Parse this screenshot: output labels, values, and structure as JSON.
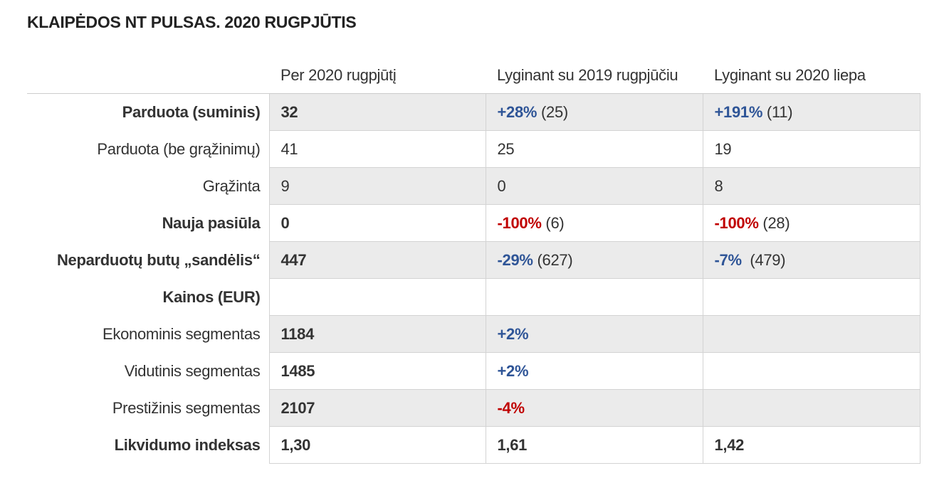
{
  "title": "KLAIPĖDOS NT PULSAS. 2020 RUGPJŪTIS",
  "colors": {
    "positive": "#2f5597",
    "negative": "#c00000",
    "shade": "#ebebeb"
  },
  "table": {
    "headers": [
      "",
      "Per 2020 rugpjūtį",
      "Lyginant su 2019 rugpjūčiu",
      "Lyginant su 2020 liepa"
    ],
    "rows": [
      {
        "label": "Parduota (suminis)",
        "bold": true,
        "shaded": true,
        "cells": [
          {
            "value": "32"
          },
          {
            "value": "+28%",
            "tone": "pos",
            "extra": " (25)"
          },
          {
            "value": "+191%",
            "tone": "pos",
            "extra": " (11)"
          }
        ]
      },
      {
        "label": "Parduota (be grąžinimų)",
        "bold": false,
        "shaded": false,
        "cells": [
          {
            "value": "41"
          },
          {
            "value": "25"
          },
          {
            "value": "19"
          }
        ]
      },
      {
        "label": "Grąžinta",
        "bold": false,
        "shaded": true,
        "cells": [
          {
            "value": "9"
          },
          {
            "value": "0"
          },
          {
            "value": "8"
          }
        ]
      },
      {
        "label": "Nauja pasiūla",
        "bold": true,
        "shaded": false,
        "cells": [
          {
            "value": "0"
          },
          {
            "value": "-100%",
            "tone": "neg",
            "extra": " (6)"
          },
          {
            "value": "-100%",
            "tone": "neg",
            "extra": " (28)"
          }
        ]
      },
      {
        "label": "Neparduotų butų „sandėlis“",
        "bold": true,
        "shaded": true,
        "cells": [
          {
            "value": "447"
          },
          {
            "value": "-29%",
            "tone": "pos",
            "extra": " (627)"
          },
          {
            "value": "-7%",
            "tone": "pos",
            "extra": "  (479)"
          }
        ]
      },
      {
        "label": "Kainos (EUR)",
        "bold": true,
        "shaded": false,
        "cells": [
          {
            "value": ""
          },
          {
            "value": ""
          },
          {
            "value": ""
          }
        ]
      },
      {
        "label": "Ekonominis segmentas",
        "bold": false,
        "shaded": true,
        "cells": [
          {
            "value": "1184",
            "bold": true
          },
          {
            "value": "+2%",
            "tone": "pos"
          },
          {
            "value": ""
          }
        ]
      },
      {
        "label": "Vidutinis segmentas",
        "bold": false,
        "shaded": false,
        "cells": [
          {
            "value": "1485",
            "bold": true
          },
          {
            "value": "+2%",
            "tone": "pos"
          },
          {
            "value": ""
          }
        ]
      },
      {
        "label": "Prestižinis segmentas",
        "bold": false,
        "shaded": true,
        "cells": [
          {
            "value": "2107",
            "bold": true
          },
          {
            "value": "-4%",
            "tone": "neg"
          },
          {
            "value": ""
          }
        ]
      },
      {
        "label": "Likvidumo indeksas",
        "bold": true,
        "shaded": false,
        "cells": [
          {
            "value": "1,30"
          },
          {
            "value": "1,61"
          },
          {
            "value": "1,42"
          }
        ]
      }
    ]
  }
}
